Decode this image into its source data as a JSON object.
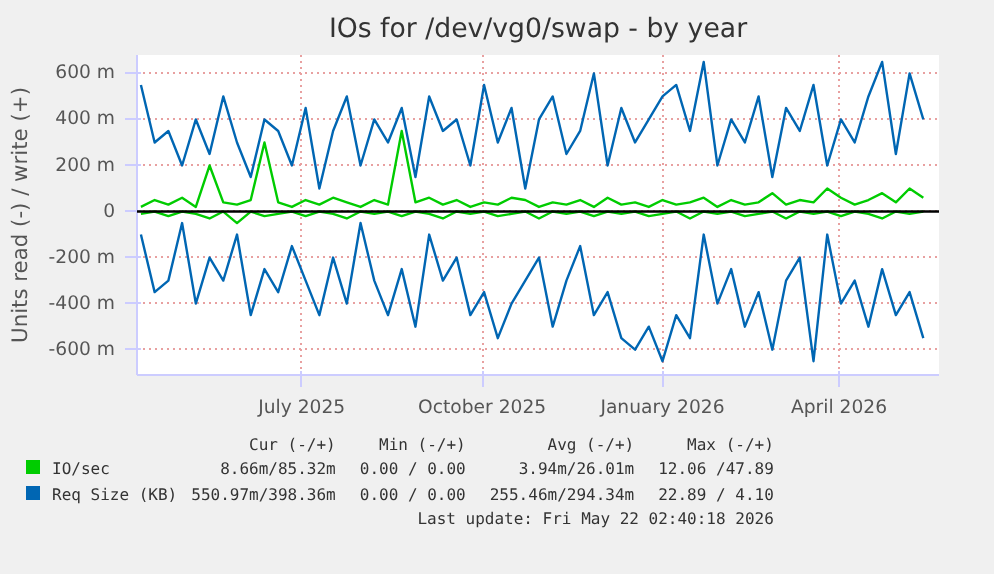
{
  "chart_data": {
    "type": "line",
    "title": "IOs for /dev/vg0/swap - by year",
    "ylabel": "Units read (-) / write (+)",
    "x": [
      "2025-04-10",
      "2025-04-17",
      "2025-04-24",
      "2025-05-01",
      "2025-05-08",
      "2025-05-15",
      "2025-05-22",
      "2025-05-29",
      "2025-06-05",
      "2025-06-12",
      "2025-06-19",
      "2025-06-26",
      "2025-07-03",
      "2025-07-10",
      "2025-07-17",
      "2025-07-24",
      "2025-07-31",
      "2025-08-07",
      "2025-08-14",
      "2025-08-21",
      "2025-08-28",
      "2025-09-04",
      "2025-09-11",
      "2025-09-18",
      "2025-09-25",
      "2025-10-02",
      "2025-10-09",
      "2025-10-16",
      "2025-10-23",
      "2025-10-30",
      "2025-11-06",
      "2025-11-13",
      "2025-11-20",
      "2025-11-27",
      "2025-12-04",
      "2025-12-11",
      "2025-12-18",
      "2025-12-25",
      "2026-01-01",
      "2026-01-08",
      "2026-01-15",
      "2026-01-22",
      "2026-01-29",
      "2026-02-05",
      "2026-02-12",
      "2026-02-19",
      "2026-02-26",
      "2026-03-05",
      "2026-03-12",
      "2026-03-19",
      "2026-03-26",
      "2026-04-02",
      "2026-04-09",
      "2026-04-16",
      "2026-04-23",
      "2026-04-30",
      "2026-05-07",
      "2026-05-14"
    ],
    "series": [
      {
        "color": "#00cc00",
        "values": [
          -10,
          0,
          -20,
          0,
          -10,
          -30,
          0,
          -50,
          0,
          -20,
          -10,
          0,
          -20,
          0,
          -10,
          -30,
          0,
          -10,
          0,
          -20,
          0,
          -10,
          -30,
          0,
          -10,
          0,
          -20,
          -10,
          0,
          -30,
          0,
          -10,
          0,
          -20,
          0,
          -10,
          0,
          -20,
          -10,
          0,
          -30,
          0,
          -10,
          0,
          -20,
          -10,
          0,
          -30,
          0,
          -10,
          0,
          -20,
          0,
          -10,
          -30,
          0,
          -10,
          0
        ]
      },
      {
        "name": "IO/sec",
        "color": "#00cc00",
        "values": [
          20,
          50,
          30,
          60,
          20,
          200,
          40,
          30,
          50,
          300,
          40,
          20,
          50,
          30,
          60,
          40,
          20,
          50,
          30,
          350,
          40,
          60,
          30,
          50,
          20,
          40,
          30,
          60,
          50,
          20,
          40,
          30,
          50,
          20,
          60,
          30,
          40,
          20,
          50,
          30,
          40,
          60,
          20,
          50,
          30,
          40,
          80,
          30,
          50,
          40,
          100,
          60,
          30,
          50,
          80,
          40,
          100,
          60
        ]
      },
      {
        "color": "#0066b3",
        "values": [
          -100,
          -350,
          -300,
          -50,
          -400,
          -200,
          -300,
          -100,
          -450,
          -250,
          -350,
          -150,
          -300,
          -450,
          -200,
          -400,
          -50,
          -300,
          -450,
          -250,
          -500,
          -100,
          -300,
          -200,
          -450,
          -350,
          -550,
          -400,
          -300,
          -200,
          -500,
          -300,
          -150,
          -450,
          -350,
          -550,
          -600,
          -500,
          -650,
          -450,
          -550,
          -100,
          -400,
          -250,
          -500,
          -350,
          -600,
          -300,
          -200,
          -650,
          -100,
          -400,
          -300,
          -500,
          -250,
          -450,
          -350,
          -550
        ]
      },
      {
        "name": "Req Size (KB)",
        "color": "#0066b3",
        "values": [
          550,
          300,
          350,
          200,
          400,
          250,
          500,
          300,
          150,
          400,
          350,
          200,
          450,
          100,
          350,
          500,
          200,
          400,
          300,
          450,
          150,
          500,
          350,
          400,
          200,
          550,
          300,
          450,
          100,
          400,
          500,
          250,
          350,
          600,
          200,
          450,
          300,
          400,
          500,
          550,
          350,
          650,
          200,
          400,
          300,
          500,
          150,
          450,
          350,
          550,
          200,
          400,
          300,
          500,
          650,
          250,
          600,
          400
        ]
      }
    ],
    "xlim": [
      "2025-04-08",
      "2026-05-22"
    ],
    "xticks": [
      {
        "value": "2025-07-01",
        "label": "July 2025"
      },
      {
        "value": "2025-10-01",
        "label": "October 2025"
      },
      {
        "value": "2026-01-01",
        "label": "January 2026"
      },
      {
        "value": "2026-04-01",
        "label": "April 2026"
      }
    ],
    "ylim": [
      -710,
      680
    ],
    "yticks": [
      {
        "value": -600,
        "label": "-600 m"
      },
      {
        "value": -400,
        "label": "-400 m"
      },
      {
        "value": -200,
        "label": "-200 m"
      },
      0,
      {
        "value": 200,
        "label": "200 m"
      },
      {
        "value": 400,
        "label": "400 m"
      },
      {
        "value": 600,
        "label": "600 m"
      }
    ],
    "ref_lines": [
      {
        "axis": "y",
        "value": 0,
        "color": "#000000"
      }
    ],
    "grid": true,
    "legend": "bottom",
    "marker": "none",
    "line_style": "solid",
    "annotations": [
      "Cur (-/+)",
      "Min (-/+)",
      "Avg (-/+)",
      "Max (-/+)",
      "8.66m/85.32m",
      "0.00 / 0.00",
      "3.94m/26.01m",
      "12.06 /47.89",
      "550.97m/398.36m",
      "0.00 / 0.00",
      "255.46m/294.34m",
      "22.89 / 4.10",
      "Last update: Fri May 22 02:40:18 2026"
    ]
  }
}
